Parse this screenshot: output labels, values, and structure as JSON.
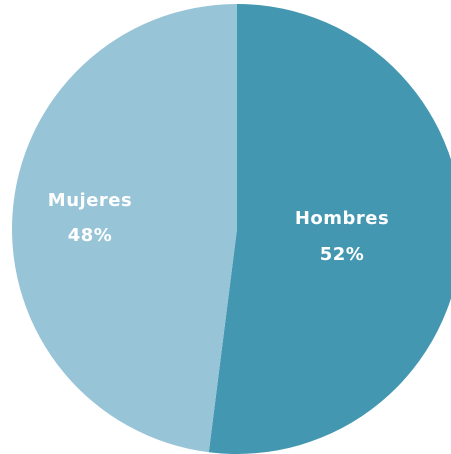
{
  "chart_data": {
    "type": "pie",
    "title": "",
    "slices": [
      {
        "label": "Hombres",
        "value": 52,
        "value_label": "52%",
        "color": "#4497b1"
      },
      {
        "label": "Mujeres",
        "value": 48,
        "value_label": "48%",
        "color": "#98c4d8"
      }
    ],
    "start_angle_deg": 0,
    "direction": "clockwise",
    "legend": "none"
  }
}
